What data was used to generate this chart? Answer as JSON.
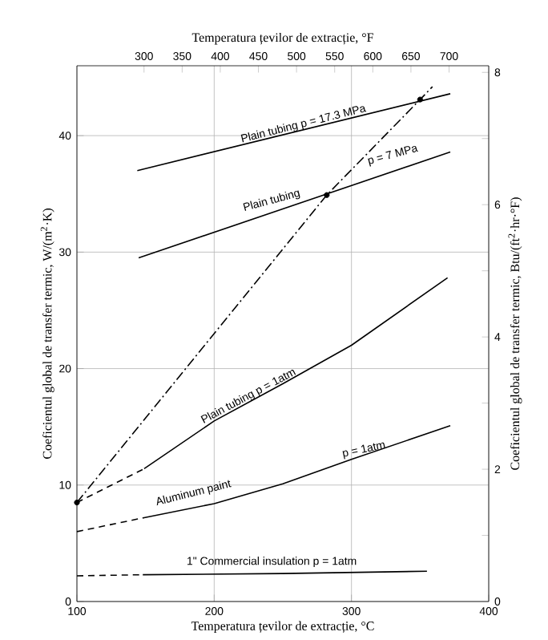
{
  "chart_data": {
    "type": "line",
    "xlabel": "Temperatura țevilor de extracție, °C",
    "x2label": "Temperatura țevilor de extracție, °F",
    "ylabel": "Coeficientul global de transfer termic, W/(m$^{2}$·K)",
    "y2label": "Coeficientul global de transfer termic, Btu/(ft$^{2}$·hr·°F)",
    "xlim": [
      100,
      400
    ],
    "xticks": [
      100,
      200,
      300,
      400
    ],
    "x2lim": [
      212,
      752
    ],
    "x2ticks": [
      300,
      350,
      400,
      450,
      500,
      550,
      600,
      650,
      700
    ],
    "ylim": [
      0,
      46
    ],
    "yticks": [
      0,
      10,
      20,
      30,
      40
    ],
    "y2lim": [
      0,
      8.1
    ],
    "y2ticks": [
      0,
      {
        "value": 1,
        "label": null
      },
      2,
      {
        "value": 3,
        "label": null
      },
      4,
      {
        "value": 5,
        "label": null
      },
      6,
      {
        "value": 7,
        "label": null
      },
      8
    ],
    "grid": true,
    "series": [
      {
        "color": "#000000",
        "line_style": "solid",
        "x": [
          144,
          372
        ],
        "values": [
          37.0,
          43.6
        ]
      },
      {
        "color": "#000000",
        "line_style": "solid",
        "x": [
          145,
          372
        ],
        "values": [
          29.5,
          38.6
        ]
      },
      {
        "color": "#000000",
        "line_style": "dashdotted",
        "x": [
          100,
          282,
          350,
          359
        ],
        "values": [
          8.5,
          34.9,
          43.1,
          44.2
        ]
      },
      {
        "color": "#000000",
        "line_style": "dashed",
        "x": [
          100,
          149
        ],
        "values": [
          8.5,
          11.4
        ]
      },
      {
        "color": "#000000",
        "line_style": "solid",
        "x": [
          149,
          200,
          250,
          300,
          370
        ],
        "values": [
          11.4,
          15.5,
          18.7,
          22.0,
          27.8
        ]
      },
      {
        "color": "#000000",
        "line_style": "dashed",
        "x": [
          100,
          149
        ],
        "values": [
          6.0,
          7.2
        ]
      },
      {
        "color": "#000000",
        "line_style": "solid",
        "x": [
          149,
          200,
          250,
          300,
          372
        ],
        "values": [
          7.2,
          8.4,
          10.1,
          12.2,
          15.1
        ]
      },
      {
        "color": "#000000",
        "line_style": "dashed",
        "x": [
          100,
          148
        ],
        "values": [
          2.2,
          2.3
        ]
      },
      {
        "color": "#000000",
        "line_style": "solid",
        "x": [
          148,
          250,
          355
        ],
        "values": [
          2.3,
          2.4,
          2.6
        ]
      },
      {
        "type": "scatter",
        "color": "#000000",
        "marker": "circle",
        "x": [
          100,
          282,
          350
        ],
        "values": [
          8.5,
          34.9,
          43.1
        ]
      }
    ],
    "annotations": [
      "Plain tubing  p = 17.3 MPa",
      "Plain tubing",
      "p = 7 MPa",
      "Plain tubing  p = 1atm",
      "Aluminum paint",
      "p = 1atm",
      "1\" Commercial insulation  p = 1atm"
    ]
  }
}
